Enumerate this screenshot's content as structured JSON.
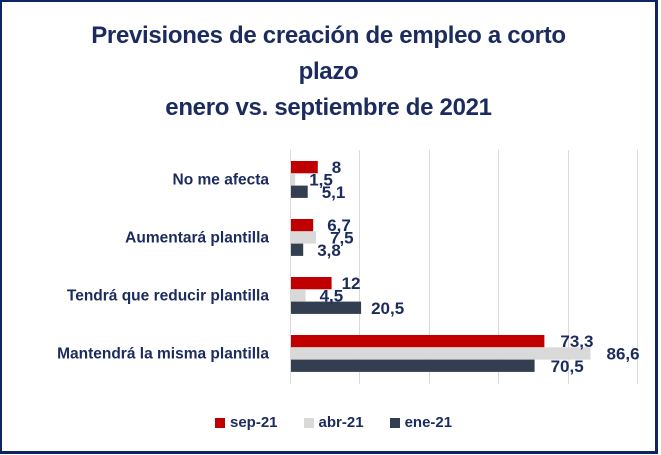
{
  "chart_data": {
    "type": "bar",
    "orientation": "horizontal",
    "title": [
      "Previsiones de creación de empleo a corto",
      "plazo",
      "enero vs. septiembre de 2021"
    ],
    "categories": [
      "No me afecta",
      "Aumentará plantilla",
      "Tendrá que reducir plantilla",
      "Mantendrá la misma plantilla"
    ],
    "series": [
      {
        "name": "sep-21",
        "color": "#c00000",
        "values": [
          8,
          6.7,
          12,
          73.3
        ],
        "labels": [
          "8",
          "6,7",
          "12",
          "73,3"
        ]
      },
      {
        "name": "abr-21",
        "color": "#d9d9d9",
        "values": [
          1.5,
          7.5,
          4.5,
          86.6
        ],
        "labels": [
          "1,5",
          "7,5",
          "4,5",
          "86,6"
        ]
      },
      {
        "name": "ene-21",
        "color": "#333f50",
        "values": [
          5.1,
          3.8,
          20.5,
          70.5
        ],
        "labels": [
          "5,1",
          "3,8",
          "20,5",
          "70,5"
        ]
      }
    ],
    "xlabel": "",
    "ylabel": "",
    "xlim": [
      0,
      100
    ],
    "gridlines": [
      0,
      20,
      40,
      60,
      80,
      100
    ],
    "grid": true,
    "axis_tick_labels_visible": false,
    "legend_position": "bottom"
  }
}
